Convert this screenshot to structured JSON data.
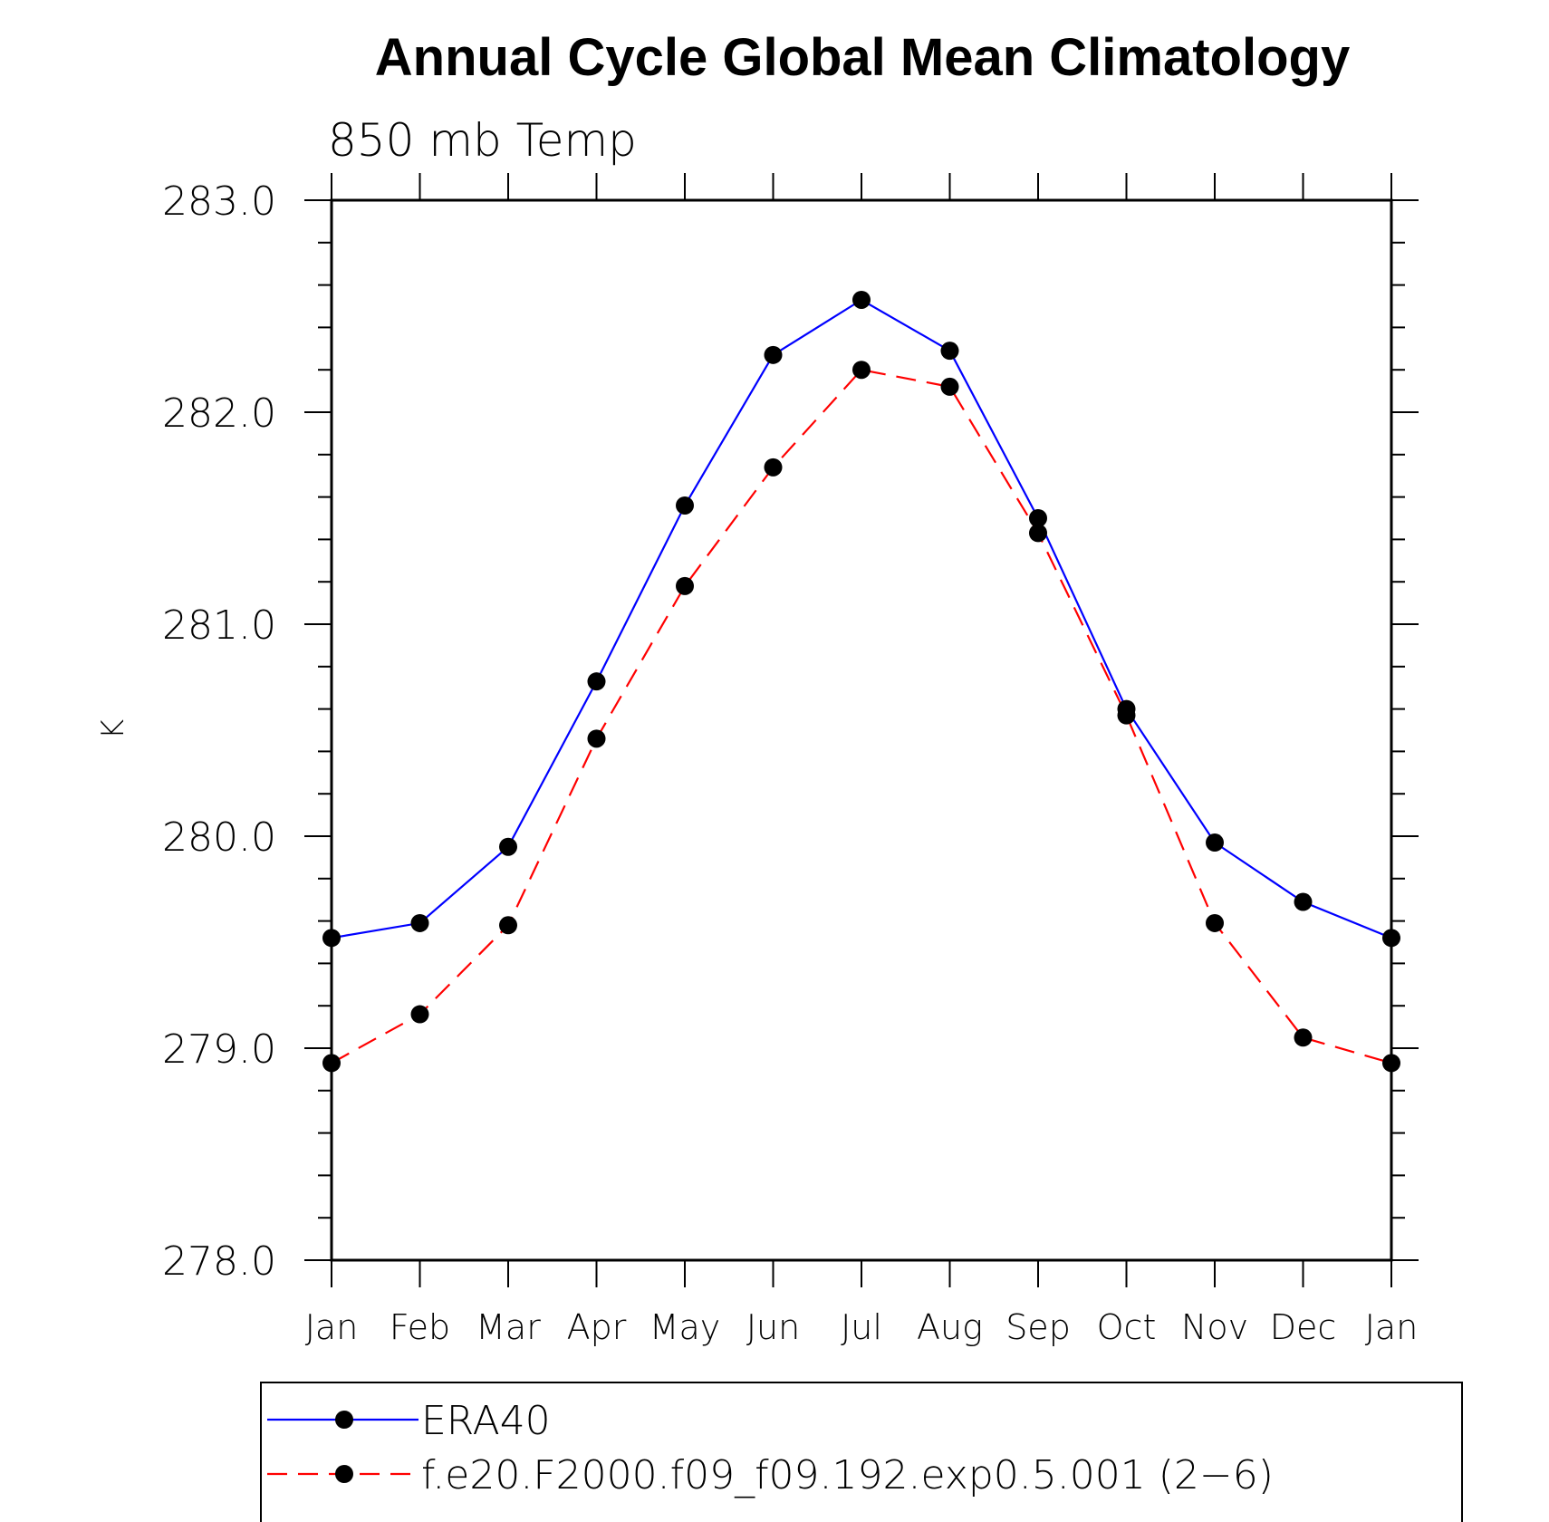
{
  "chart_data": {
    "type": "line",
    "title": "Annual Cycle Global Mean Climatology",
    "subtitle": "850 mb Temp",
    "ylabel": "K",
    "xlabel": "",
    "ylim": [
      278.0,
      283.0
    ],
    "yticks": [
      "283.0",
      "282.0",
      "281.0",
      "280.0",
      "279.0",
      "278.0"
    ],
    "categories": [
      "Jan",
      "Feb",
      "Mar",
      "Apr",
      "May",
      "Jun",
      "Jul",
      "Aug",
      "Sep",
      "Oct",
      "Nov",
      "Dec",
      "Jan"
    ],
    "series": [
      {
        "name": "ERA40",
        "color": "#0000ff",
        "line_style": "solid",
        "marker": "filled-circle",
        "values": [
          279.52,
          279.59,
          279.95,
          280.73,
          281.56,
          282.27,
          282.53,
          282.29,
          281.5,
          280.6,
          279.97,
          279.69,
          279.52
        ]
      },
      {
        "name": "f.e20.F2000.f09_f09.192.exp0.5.001 (2−6)",
        "color": "#ff0000",
        "line_style": "dashed",
        "marker": "filled-circle",
        "values": [
          278.93,
          279.16,
          279.58,
          280.46,
          281.18,
          281.74,
          282.2,
          282.12,
          281.43,
          280.57,
          279.59,
          279.05,
          278.93
        ]
      }
    ],
    "grid": false,
    "legend_position": "bottom"
  }
}
